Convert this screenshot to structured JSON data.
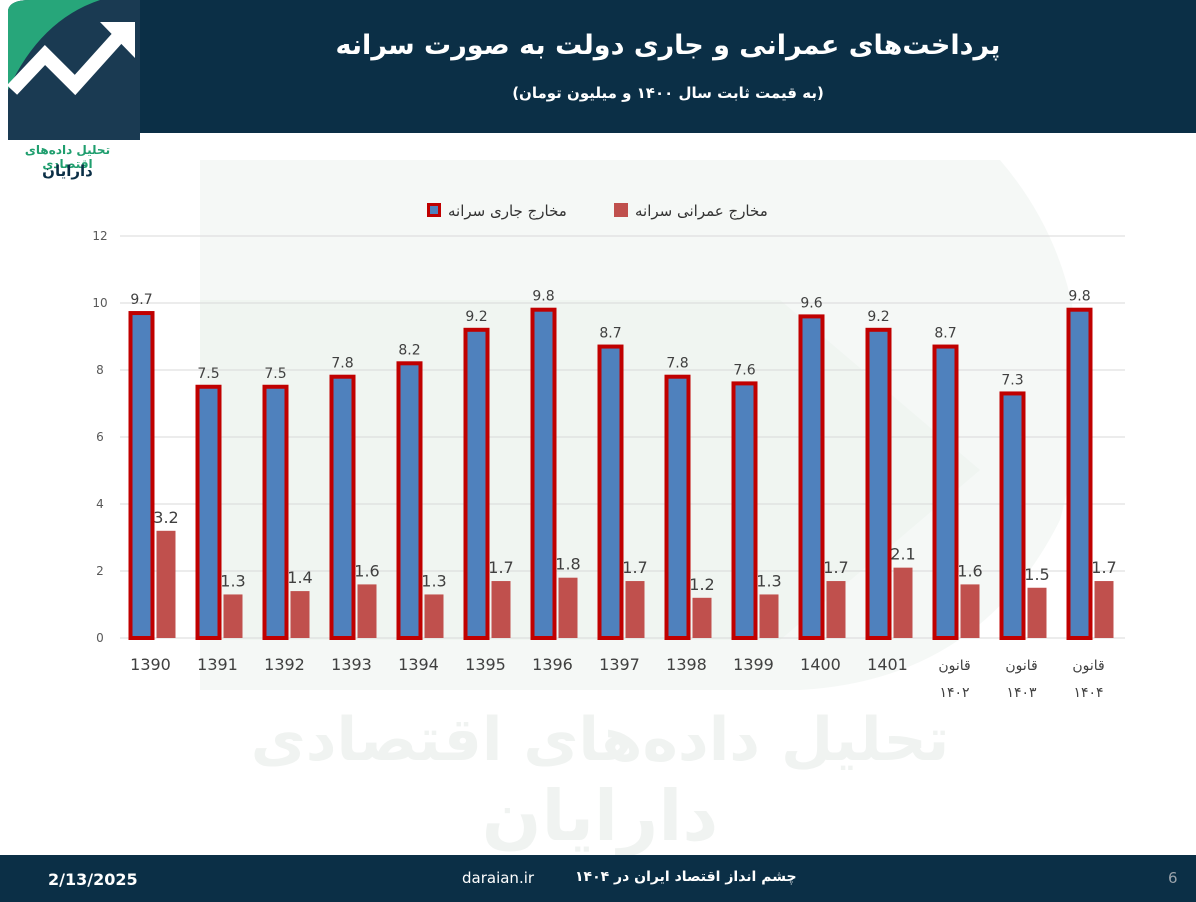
{
  "header": {
    "title": "پرداخت‌های عمرانی و جاری دولت به صورت سرانه",
    "subtitle": "(به قیمت ثابت سال ۱۴۰۰ و میلیون تومان)"
  },
  "logo": {
    "line1": "تحلیل داده‌های اقتصادی",
    "line2": "دارایان"
  },
  "footer": {
    "date": "2/13/2025",
    "site": "daraian.ir",
    "text": "چشم انداز اقتصاد ایران  در ۱۴۰۴",
    "page": "6"
  },
  "colors": {
    "header_bg": "#0b2f46",
    "current_fill": "#4f81bd",
    "current_border": "#c00000",
    "capital_fill": "#c0504d",
    "grid": "#d9d9d9"
  },
  "chart_data": {
    "type": "bar",
    "ylim": [
      0,
      12
    ],
    "yticks": [
      0,
      2,
      4,
      6,
      8,
      10,
      12
    ],
    "grid": true,
    "legend_position": "top",
    "categories": [
      "1390",
      "1391",
      "1392",
      "1393",
      "1394",
      "1395",
      "1396",
      "1397",
      "1398",
      "1399",
      "1400",
      "1401",
      "قانون ۱۴۰۲",
      "قانون ۱۴۰۳",
      "قانون ۱۴۰۴"
    ],
    "series": [
      {
        "name": "مخارج جاری سرانه",
        "values": [
          9.7,
          7.5,
          7.5,
          7.8,
          8.2,
          9.2,
          9.8,
          8.7,
          7.8,
          7.6,
          9.6,
          9.2,
          8.7,
          7.3,
          9.8
        ]
      },
      {
        "name": "مخارج عمرانی سرانه",
        "values": [
          3.2,
          1.3,
          1.4,
          1.6,
          1.3,
          1.7,
          1.8,
          1.7,
          1.2,
          1.3,
          1.7,
          2.1,
          1.6,
          1.5,
          1.7
        ]
      }
    ]
  }
}
